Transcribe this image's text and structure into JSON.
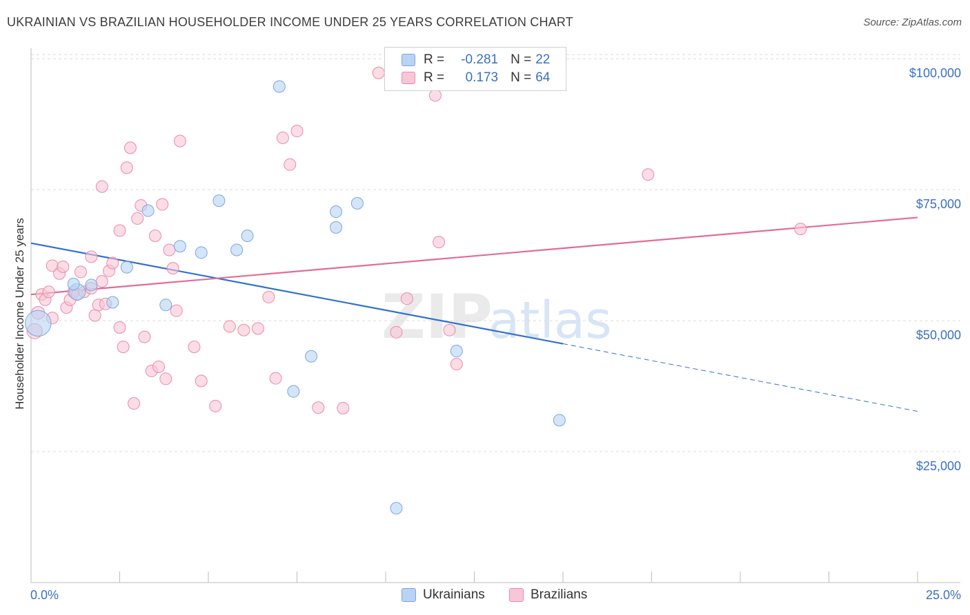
{
  "title": "UKRAINIAN VS BRAZILIAN HOUSEHOLDER INCOME UNDER 25 YEARS CORRELATION CHART",
  "source": "Source: ZipAtlas.com",
  "watermark": {
    "zip": "ZIP",
    "atlas": "atlas"
  },
  "legend": {
    "rows": [
      {
        "r_label": "R =",
        "r_value": "-0.281",
        "n_label": "N =",
        "n_value": "22",
        "color": "#b8d3f4",
        "border": "#7aa6e0"
      },
      {
        "r_label": "R =",
        "r_value": "0.173",
        "n_label": "N =",
        "n_value": "64",
        "color": "#f8c6d6",
        "border": "#e98aaa"
      }
    ]
  },
  "bottom_legend": {
    "ukrainians": "Ukrainians",
    "brazilians": "Brazilians"
  },
  "chart_data": {
    "type": "scatter",
    "title": "UKRAINIAN VS BRAZILIAN HOUSEHOLDER INCOME UNDER 25 YEARS CORRELATION CHART",
    "xlabel": "",
    "ylabel": "Householder Income Under 25 years",
    "xlim": [
      0,
      25
    ],
    "ylim": [
      0,
      102000
    ],
    "x_tick_labels": [
      "0.0%",
      "25.0%"
    ],
    "y_ticks": [
      {
        "value": 25000,
        "label": "$25,000"
      },
      {
        "value": 50000,
        "label": "$50,000"
      },
      {
        "value": 75000,
        "label": "$75,000"
      },
      {
        "value": 100000,
        "label": "$100,000"
      }
    ],
    "grid": true,
    "series": [
      {
        "name": "Ukrainians",
        "color": "#b8d3f4",
        "stroke": "#7aa6e0",
        "line_color": "#2e6fd1",
        "trend": {
          "x0": 0,
          "y0": 64800,
          "x1": 15,
          "y1": 45600,
          "x_end": 25,
          "y_end": 32700
        },
        "points": [
          [
            0.2,
            49500,
            2.2
          ],
          [
            1.3,
            55500,
            1.4
          ],
          [
            1.2,
            57000,
            1
          ],
          [
            1.7,
            56800,
            1
          ],
          [
            2.3,
            53500,
            1
          ],
          [
            2.7,
            60200,
            1
          ],
          [
            3.3,
            71000,
            1
          ],
          [
            3.8,
            53000,
            1
          ],
          [
            4.2,
            64200,
            1
          ],
          [
            4.8,
            63000,
            1
          ],
          [
            5.3,
            72900,
            1
          ],
          [
            5.8,
            63500,
            1
          ],
          [
            6.1,
            66200,
            1
          ],
          [
            7.0,
            94700,
            1
          ],
          [
            7.4,
            36500,
            1
          ],
          [
            7.9,
            43200,
            1
          ],
          [
            8.6,
            70800,
            1
          ],
          [
            8.6,
            67800,
            1
          ],
          [
            9.2,
            72400,
            1
          ],
          [
            10.3,
            14200,
            1
          ],
          [
            12.0,
            44200,
            1
          ],
          [
            14.9,
            31000,
            1
          ]
        ]
      },
      {
        "name": "Brazilians",
        "color": "#f8c6d6",
        "stroke": "#e98aaa",
        "line_color": "#e46b94",
        "trend": {
          "x0": 0,
          "y0": 55000,
          "x1": 25,
          "y1": 69700
        },
        "points": [
          [
            0.1,
            48000,
            1.3
          ],
          [
            0.2,
            51500,
            1.1
          ],
          [
            0.3,
            55000,
            1
          ],
          [
            0.4,
            54000,
            1
          ],
          [
            0.5,
            55500,
            1
          ],
          [
            0.6,
            50500,
            1
          ],
          [
            0.6,
            60500,
            1
          ],
          [
            0.8,
            59000,
            1
          ],
          [
            0.9,
            60300,
            1
          ],
          [
            1.0,
            52500,
            1
          ],
          [
            1.1,
            54000,
            1
          ],
          [
            1.2,
            55500,
            1
          ],
          [
            1.3,
            55000,
            1
          ],
          [
            1.4,
            59300,
            1
          ],
          [
            1.5,
            55500,
            1
          ],
          [
            1.7,
            62200,
            1
          ],
          [
            1.7,
            56200,
            1
          ],
          [
            1.8,
            51000,
            1
          ],
          [
            1.9,
            53000,
            1
          ],
          [
            2.0,
            57500,
            1
          ],
          [
            2.0,
            75600,
            1
          ],
          [
            2.1,
            53200,
            1
          ],
          [
            2.2,
            59500,
            1
          ],
          [
            2.3,
            61000,
            1
          ],
          [
            2.5,
            67200,
            1
          ],
          [
            2.5,
            48700,
            1
          ],
          [
            2.6,
            45000,
            1
          ],
          [
            2.7,
            79200,
            1
          ],
          [
            2.8,
            83000,
            1
          ],
          [
            2.9,
            34200,
            1
          ],
          [
            3.0,
            69500,
            1
          ],
          [
            3.1,
            72000,
            1
          ],
          [
            3.2,
            46900,
            1
          ],
          [
            3.4,
            40400,
            1
          ],
          [
            3.5,
            66200,
            1
          ],
          [
            3.6,
            41200,
            1
          ],
          [
            3.7,
            72200,
            1
          ],
          [
            3.8,
            38900,
            1
          ],
          [
            3.9,
            63500,
            1
          ],
          [
            4.0,
            60000,
            1
          ],
          [
            4.1,
            51900,
            1
          ],
          [
            4.2,
            84300,
            1
          ],
          [
            4.6,
            45000,
            1
          ],
          [
            4.8,
            38500,
            1
          ],
          [
            5.2,
            33700,
            1
          ],
          [
            5.6,
            48900,
            1
          ],
          [
            6.0,
            48200,
            1
          ],
          [
            6.4,
            48500,
            1
          ],
          [
            6.7,
            54500,
            1
          ],
          [
            6.9,
            39000,
            1
          ],
          [
            7.1,
            84900,
            1
          ],
          [
            7.3,
            79800,
            1
          ],
          [
            7.5,
            86200,
            1
          ],
          [
            8.1,
            33400,
            1
          ],
          [
            8.8,
            33300,
            1
          ],
          [
            9.8,
            97300,
            1
          ],
          [
            10.3,
            47800,
            1
          ],
          [
            10.6,
            54200,
            1
          ],
          [
            11.4,
            93000,
            1
          ],
          [
            11.5,
            65000,
            1
          ],
          [
            11.8,
            48200,
            1
          ],
          [
            12.0,
            41700,
            1
          ],
          [
            17.4,
            77900,
            1
          ],
          [
            21.7,
            67500,
            1
          ]
        ]
      }
    ]
  }
}
